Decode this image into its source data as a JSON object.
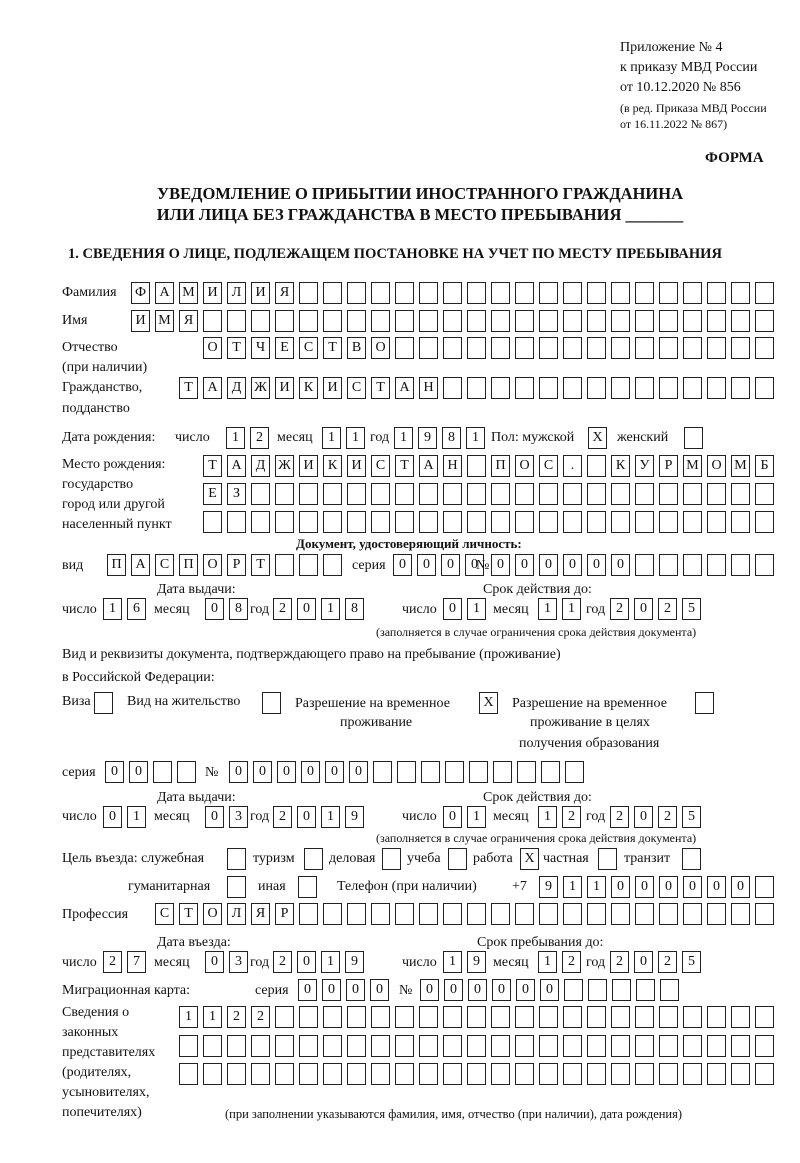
{
  "header": {
    "appendix": [
      "Приложение № 4",
      "к приказу МВД России",
      "от 10.12.2020 № 856"
    ],
    "edit_note": [
      "(в ред. Приказа МВД России",
      "от 16.11.2022 № 867)"
    ],
    "form_label": "ФОРМА",
    "title_line1": "УВЕДОМЛЕНИЕ О ПРИБЫТИИ ИНОСТРАННОГО ГРАЖДАНИНА",
    "title_line2": "ИЛИ ЛИЦА БЕЗ ГРАЖДАНСТВА В МЕСТО ПРЕБЫВАНИЯ _______",
    "section1": "1. СВЕДЕНИЯ О ЛИЦЕ, ПОДЛЕЖАЩЕМ ПОСТАНОВКЕ НА УЧЕТ ПО МЕСТУ ПРЕБЫВАНИЯ"
  },
  "person": {
    "surname_label": "Фамилия",
    "surname": "ФАМИЛИЯ",
    "name_label": "Имя",
    "name": "ИМЯ",
    "patronymic_label": [
      "Отчество",
      "(при наличии)"
    ],
    "patronymic": "ОТЧЕСТВО",
    "citizenship_label": [
      "Гражданство,",
      "подданство"
    ],
    "citizenship": "ТАДЖИКИСТАН",
    "birth_label": "Дата рождения:",
    "day_label": "число",
    "month_label": "месяц",
    "year_label": "год",
    "birth_day": "12",
    "birth_month": "11",
    "birth_year": "1981",
    "sex_label": "Пол: мужской",
    "female_label": "женский",
    "male_mark": "X",
    "female_mark": "",
    "birthplace_label": [
      "Место рождения:",
      "государство",
      "город или другой",
      "населенный пункт"
    ],
    "birthplace_rows": [
      "ТАДЖИКИСТАН ПОС. КУРМОМБ",
      "ЕЗ",
      ""
    ]
  },
  "id_document": {
    "heading": "Документ, удостоверяющий личность:",
    "kind_label": "вид",
    "kind": "ПАСПОРТ",
    "series_label": "серия",
    "series": "0000",
    "number_label": "№",
    "number": "000000",
    "issue_label": "Дата выдачи:",
    "valid_label": "Срок действия до:",
    "issue_day": "16",
    "issue_month": "08",
    "issue_year": "2018",
    "valid_day": "01",
    "valid_month": "11",
    "valid_year": "2025",
    "note": "(заполняется в случае ограничения срока действия документа)"
  },
  "stay_document": {
    "text_line1": "Вид и реквизиты документа, подтверждающего право на пребывание (проживание)",
    "text_line2": "в Российской Федерации:",
    "visa_label": "Виза",
    "visa_mark": "",
    "residence_label": "Вид на жительство",
    "residence_mark": "",
    "temp_label": [
      "Разрешение на временное",
      "проживание"
    ],
    "temp_mark": "X",
    "temp_edu_label": [
      "Разрешение на временное",
      "проживание в целях",
      "получения образования"
    ],
    "temp_edu_mark": "",
    "series_label": "серия",
    "series": "00",
    "number_label": "№",
    "number": "000000",
    "issue_label": "Дата выдачи:",
    "valid_label": "Срок действия до:",
    "issue_day": "01",
    "issue_month": "03",
    "issue_year": "2019",
    "valid_day": "01",
    "valid_month": "12",
    "valid_year": "2025",
    "note": "(заполняется в случае ограничения срока действия документа)"
  },
  "purpose": {
    "label": "Цель въезда: служебная",
    "service_mark": "",
    "tourism_label": "туризм",
    "tourism_mark": "",
    "business_label": "деловая",
    "business_mark": "",
    "study_label": "учеба",
    "study_mark": "",
    "work_label": "работа",
    "work_mark": "X",
    "private_label": "частная",
    "private_mark": "",
    "transit_label": "транзит",
    "transit_mark": "",
    "humanitarian_label": "гуманитарная",
    "humanitarian_mark": "",
    "other_label": "иная",
    "other_mark": ""
  },
  "phone": {
    "label": "Телефон (при наличии)",
    "prefix": "+7",
    "number": "911000000"
  },
  "profession": {
    "label": "Профессия",
    "value": "СТОЛЯР"
  },
  "entry": {
    "entry_label": "Дата въезда:",
    "stay_label": "Срок пребывания до:",
    "entry_day": "27",
    "entry_month": "03",
    "entry_year": "2019",
    "stay_day": "19",
    "stay_month": "12",
    "stay_year": "2025"
  },
  "migration_card": {
    "label": "Миграционная карта:",
    "series_label": "серия",
    "series": "0000",
    "number_label": "№",
    "number": "000000"
  },
  "representatives": {
    "label": [
      "Сведения о",
      "законных",
      "представителях",
      "(родителях,",
      "усыновителях,",
      "попечителях)"
    ],
    "rows": [
      "1122",
      "",
      ""
    ],
    "note": "(при заполнении указываются фамилия, имя, отчество (при наличии), дата рождения)"
  }
}
